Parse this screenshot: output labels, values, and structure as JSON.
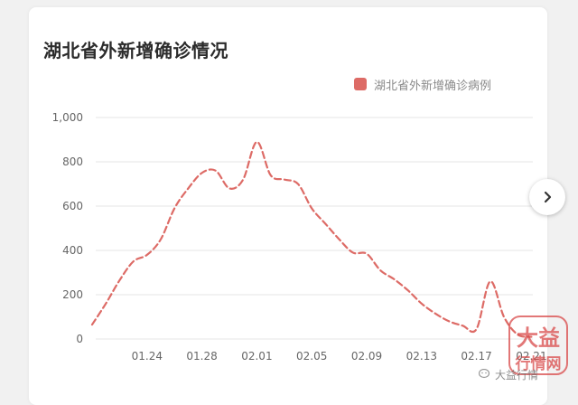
{
  "card": {
    "title": "湖北省外新增确诊情况"
  },
  "colors": {
    "series": "#dd6b66",
    "grid": "#e6e6e6",
    "axis_text": "#666666"
  },
  "icons": {
    "next": "chevron-right-icon",
    "watermark": "stamp-logo",
    "caption": "wechat-icon"
  },
  "watermark": {
    "top_text": "大益",
    "bottom_text": "行情网"
  },
  "caption": {
    "text": "大益行情"
  },
  "chart_data": {
    "type": "line",
    "title": "湖北省外新增确诊情况",
    "legend_position": "top-right",
    "grid": true,
    "ylim": [
      0,
      1000
    ],
    "y_ticks": [
      0,
      200,
      400,
      600,
      800,
      1000
    ],
    "y_tick_labels": [
      "0",
      "200",
      "400",
      "600",
      "800",
      "1,000"
    ],
    "x_tick_labels": [
      "01.24",
      "01.28",
      "02.01",
      "02.05",
      "02.09",
      "02.13",
      "02.17",
      "02.21"
    ],
    "x": [
      "01.20",
      "01.21",
      "01.22",
      "01.23",
      "01.24",
      "01.25",
      "01.26",
      "01.27",
      "01.28",
      "01.29",
      "01.30",
      "01.31",
      "02.01",
      "02.02",
      "02.03",
      "02.04",
      "02.05",
      "02.06",
      "02.07",
      "02.08",
      "02.09",
      "02.10",
      "02.11",
      "02.12",
      "02.13",
      "02.14",
      "02.15",
      "02.16",
      "02.17",
      "02.18",
      "02.19",
      "02.20",
      "02.21"
    ],
    "series": [
      {
        "name": "湖北省外新增确诊病例",
        "values": [
          65,
          160,
          265,
          350,
          380,
          450,
          590,
          680,
          750,
          760,
          680,
          720,
          890,
          740,
          720,
          700,
          590,
          520,
          450,
          390,
          385,
          310,
          270,
          220,
          160,
          115,
          80,
          60,
          45,
          260,
          100,
          20,
          10
        ]
      }
    ]
  }
}
